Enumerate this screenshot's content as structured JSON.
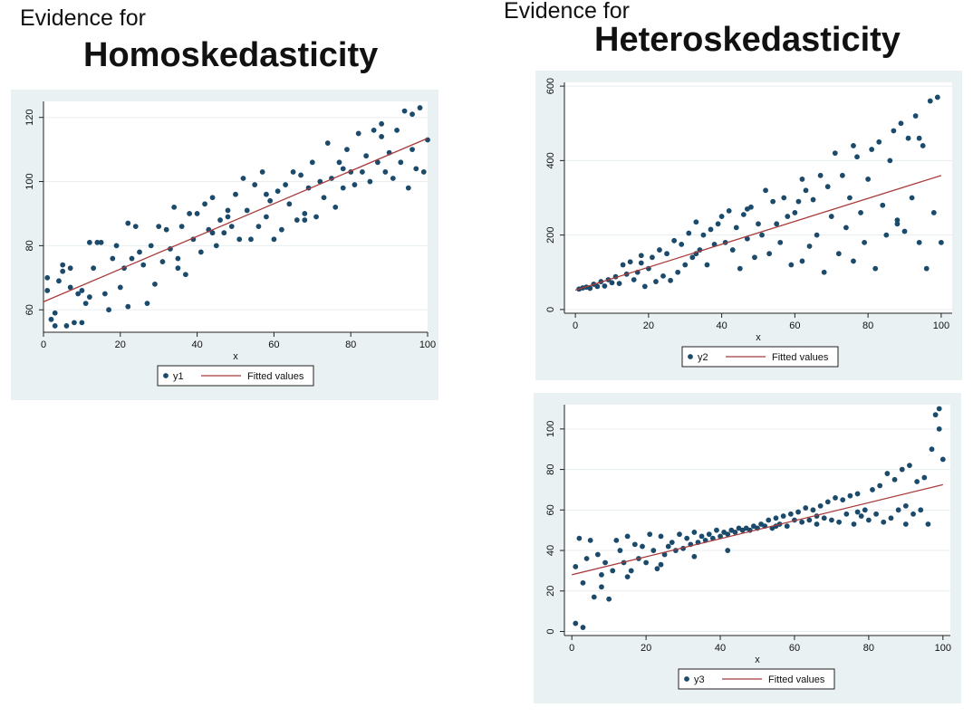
{
  "left": {
    "heading_small": "Evidence for",
    "heading_large": "Homoskedasticity"
  },
  "right": {
    "heading_small": "Evidence for",
    "heading_large": "Heteroskedasticity"
  },
  "colors": {
    "panel_background": "#e9f1f3",
    "plot_background": "#ffffff",
    "marker": "#1b4a6b",
    "fitted_line": "#a83a3a",
    "grid": "#e8eef0"
  },
  "chart_data": [
    {
      "type": "scatter",
      "xlabel": "x",
      "ylabel": "",
      "xlim": [
        0,
        100
      ],
      "ylim": [
        53,
        125
      ],
      "xticks": [
        0,
        20,
        40,
        60,
        80,
        100
      ],
      "yticks": [
        60,
        80,
        100,
        120
      ],
      "legend": "bottom-center",
      "grid": true,
      "series": [
        {
          "name": "y1",
          "kind": "scatter",
          "x": [
            1,
            1,
            2,
            3,
            3,
            4,
            5,
            5,
            6,
            7,
            7,
            8,
            9,
            10,
            10,
            11,
            12,
            13,
            14,
            15,
            16,
            17,
            18,
            19,
            20,
            21,
            22,
            23,
            24,
            25,
            26,
            27,
            28,
            29,
            30,
            31,
            32,
            33,
            34,
            35,
            36,
            37,
            38,
            39,
            40,
            41,
            42,
            43,
            44,
            45,
            46,
            47,
            48,
            49,
            50,
            51,
            52,
            53,
            54,
            55,
            56,
            57,
            58,
            59,
            60,
            61,
            62,
            63,
            64,
            65,
            66,
            67,
            68,
            69,
            70,
            71,
            72,
            73,
            74,
            75,
            76,
            77,
            78,
            79,
            80,
            81,
            82,
            83,
            84,
            85,
            86,
            87,
            88,
            89,
            90,
            91,
            92,
            93,
            94,
            95,
            96,
            97,
            98,
            99,
            100,
            12,
            22,
            35,
            48,
            58,
            68,
            78,
            88,
            96,
            44
          ],
          "y": [
            66,
            70,
            57,
            59,
            55,
            69,
            74,
            72,
            55,
            67,
            73,
            56,
            65,
            66,
            56,
            62,
            64,
            73,
            81,
            81,
            65,
            60,
            76,
            80,
            67,
            73,
            61,
            76,
            86,
            78,
            74,
            62,
            80,
            68,
            86,
            75,
            85,
            79,
            92,
            73,
            86,
            71,
            90,
            82,
            90,
            78,
            93,
            85,
            95,
            80,
            88,
            84,
            91,
            86,
            96,
            82,
            101,
            91,
            82,
            99,
            86,
            103,
            89,
            94,
            82,
            97,
            85,
            99,
            93,
            103,
            88,
            102,
            90,
            98,
            106,
            89,
            100,
            95,
            112,
            101,
            92,
            106,
            98,
            110,
            103,
            99,
            115,
            103,
            108,
            100,
            116,
            106,
            118,
            103,
            109,
            101,
            116,
            106,
            122,
            98,
            110,
            104,
            123,
            103,
            113,
            81,
            87,
            76,
            89,
            96,
            88,
            104,
            114,
            121,
            84
          ]
        },
        {
          "name": "Fitted values",
          "kind": "line",
          "x": [
            0,
            100
          ],
          "y": [
            62.5,
            113.5
          ]
        }
      ]
    },
    {
      "type": "scatter",
      "xlabel": "x",
      "ylabel": "",
      "xlim": [
        -3,
        103
      ],
      "ylim": [
        -10,
        610
      ],
      "xticks": [
        0,
        20,
        40,
        60,
        80,
        100
      ],
      "yticks": [
        0,
        200,
        400,
        600
      ],
      "legend": "bottom-center",
      "grid": true,
      "series": [
        {
          "name": "y2",
          "kind": "scatter",
          "x": [
            1,
            2,
            3,
            4,
            5,
            6,
            7,
            8,
            9,
            10,
            11,
            12,
            13,
            14,
            15,
            16,
            17,
            18,
            19,
            20,
            21,
            22,
            23,
            24,
            25,
            26,
            27,
            28,
            29,
            30,
            31,
            32,
            33,
            34,
            35,
            36,
            37,
            38,
            39,
            40,
            41,
            42,
            43,
            44,
            45,
            46,
            47,
            48,
            49,
            50,
            51,
            52,
            53,
            54,
            55,
            56,
            57,
            58,
            59,
            60,
            61,
            62,
            63,
            64,
            65,
            66,
            67,
            68,
            69,
            70,
            71,
            72,
            73,
            74,
            75,
            76,
            77,
            78,
            79,
            80,
            81,
            82,
            83,
            84,
            85,
            86,
            87,
            88,
            89,
            90,
            91,
            92,
            93,
            94,
            95,
            96,
            97,
            98,
            99,
            100,
            18,
            33,
            47,
            62,
            76,
            88,
            94
          ],
          "y": [
            55,
            58,
            60,
            57,
            68,
            62,
            75,
            63,
            80,
            72,
            88,
            70,
            120,
            95,
            128,
            80,
            100,
            145,
            62,
            110,
            140,
            75,
            160,
            90,
            150,
            78,
            185,
            100,
            175,
            120,
            205,
            140,
            235,
            160,
            200,
            120,
            215,
            175,
            230,
            250,
            180,
            265,
            160,
            220,
            110,
            255,
            190,
            275,
            140,
            230,
            200,
            320,
            150,
            290,
            230,
            180,
            300,
            250,
            120,
            260,
            290,
            130,
            320,
            170,
            295,
            200,
            360,
            100,
            330,
            250,
            420,
            150,
            360,
            220,
            300,
            130,
            410,
            260,
            180,
            350,
            430,
            110,
            450,
            280,
            200,
            400,
            480,
            240,
            500,
            210,
            460,
            300,
            520,
            180,
            440,
            110,
            560,
            260,
            570,
            180,
            125,
            150,
            270,
            350,
            440,
            230,
            460
          ]
        },
        {
          "name": "Fitted values",
          "kind": "line",
          "x": [
            0,
            100
          ],
          "y": [
            52,
            360
          ]
        }
      ]
    },
    {
      "type": "scatter",
      "xlabel": "x",
      "ylabel": "",
      "xlim": [
        -2,
        102
      ],
      "ylim": [
        -2,
        112
      ],
      "xticks": [
        0,
        20,
        40,
        60,
        80,
        100
      ],
      "yticks": [
        0,
        20,
        40,
        60,
        80,
        100
      ],
      "legend": "bottom-center",
      "grid": true,
      "series": [
        {
          "name": "y3",
          "kind": "scatter",
          "x": [
            1,
            2,
            3,
            4,
            5,
            6,
            7,
            8,
            9,
            10,
            11,
            12,
            13,
            14,
            15,
            16,
            17,
            18,
            19,
            20,
            21,
            22,
            23,
            24,
            25,
            26,
            27,
            28,
            29,
            30,
            31,
            32,
            33,
            34,
            35,
            36,
            37,
            38,
            39,
            40,
            41,
            42,
            43,
            44,
            45,
            46,
            47,
            48,
            49,
            50,
            51,
            52,
            53,
            54,
            55,
            56,
            57,
            58,
            59,
            60,
            61,
            62,
            63,
            64,
            65,
            66,
            67,
            68,
            69,
            70,
            71,
            72,
            73,
            74,
            75,
            76,
            77,
            78,
            79,
            80,
            81,
            82,
            83,
            84,
            85,
            86,
            87,
            88,
            89,
            90,
            91,
            92,
            93,
            94,
            95,
            96,
            97,
            98,
            99,
            100,
            1,
            3,
            8,
            15,
            24,
            33,
            42,
            55,
            66,
            77,
            90,
            99
          ],
          "y": [
            32,
            46,
            24,
            36,
            45,
            17,
            38,
            28,
            34,
            16,
            30,
            45,
            40,
            34,
            47,
            30,
            43,
            36,
            42,
            34,
            48,
            40,
            31,
            47,
            38,
            42,
            44,
            40,
            48,
            41,
            46,
            43,
            49,
            44,
            47,
            45,
            48,
            46,
            50,
            47,
            49,
            48,
            50,
            49,
            51,
            50,
            51,
            50,
            52,
            51,
            53,
            52,
            55,
            51,
            56,
            53,
            57,
            52,
            58,
            55,
            59,
            54,
            61,
            55,
            60,
            53,
            62,
            56,
            64,
            55,
            66,
            54,
            65,
            58,
            67,
            53,
            68,
            57,
            60,
            55,
            70,
            58,
            72,
            54,
            78,
            56,
            75,
            60,
            80,
            53,
            82,
            58,
            74,
            60,
            76,
            53,
            90,
            107,
            100,
            85,
            4,
            2,
            22,
            27,
            33,
            37,
            40,
            52,
            57,
            59,
            62,
            110
          ]
        },
        {
          "name": "Fitted values",
          "kind": "line",
          "x": [
            0,
            100
          ],
          "y": [
            28,
            72.5
          ]
        }
      ]
    }
  ]
}
